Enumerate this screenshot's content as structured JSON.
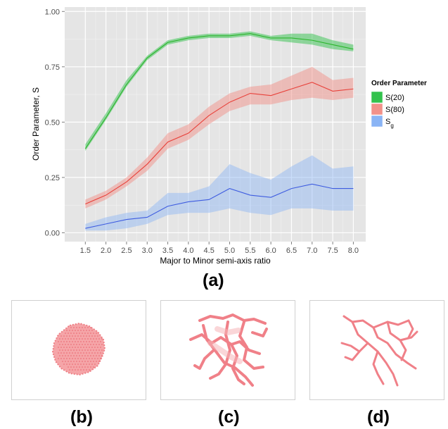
{
  "chart_data": {
    "type": "line",
    "xlabel": "Major to Minor semi-axis ratio",
    "ylabel": "Order Parameter, S",
    "x": [
      1.5,
      2.0,
      2.5,
      3.0,
      3.5,
      4.0,
      4.5,
      5.0,
      5.5,
      6.0,
      6.5,
      7.0,
      7.5,
      8.0
    ],
    "x_tick_labels": [
      "1.5",
      "2.0",
      "2.5",
      "3.0",
      "3.5",
      "4.0",
      "4.5",
      "5.0",
      "5.5",
      "6.0",
      "6.5",
      "7.0",
      "7.5",
      "8.0"
    ],
    "y_ticks": [
      0,
      0.25,
      0.5,
      0.75,
      1.0
    ],
    "y_tick_labels": [
      "0.00",
      "0.25",
      "0.50",
      "0.75",
      "1.00"
    ],
    "xlim": [
      1.0,
      8.3
    ],
    "ylim": [
      -0.04,
      1.02
    ],
    "grid": true,
    "legend": {
      "title": "Order Parameter",
      "placement": "right"
    },
    "series": [
      {
        "name": "S(20)",
        "line_color": "#2bb52b",
        "fill_color": "#33c24d",
        "values": [
          0.38,
          0.52,
          0.67,
          0.79,
          0.86,
          0.88,
          0.89,
          0.89,
          0.9,
          0.88,
          0.88,
          0.87,
          0.85,
          0.83
        ],
        "lower": [
          0.37,
          0.51,
          0.66,
          0.78,
          0.85,
          0.87,
          0.88,
          0.88,
          0.89,
          0.87,
          0.86,
          0.85,
          0.83,
          0.82
        ],
        "upper": [
          0.4,
          0.54,
          0.69,
          0.8,
          0.87,
          0.89,
          0.9,
          0.9,
          0.91,
          0.89,
          0.9,
          0.9,
          0.87,
          0.85
        ]
      },
      {
        "name": "S(80)",
        "line_color": "#e8413a",
        "fill_color": "#f2918a",
        "values": [
          0.13,
          0.17,
          0.23,
          0.31,
          0.41,
          0.45,
          0.53,
          0.59,
          0.63,
          0.62,
          0.65,
          0.68,
          0.64,
          0.65
        ],
        "lower": [
          0.11,
          0.15,
          0.21,
          0.28,
          0.38,
          0.42,
          0.49,
          0.55,
          0.58,
          0.58,
          0.6,
          0.61,
          0.6,
          0.61
        ],
        "upper": [
          0.15,
          0.19,
          0.25,
          0.34,
          0.45,
          0.49,
          0.57,
          0.63,
          0.66,
          0.67,
          0.71,
          0.75,
          0.69,
          0.7
        ]
      },
      {
        "name": "S",
        "name_subscript": "g",
        "line_color": "#3e5ce0",
        "fill_color": "#8ab4f5",
        "values": [
          0.02,
          0.04,
          0.06,
          0.07,
          0.12,
          0.14,
          0.15,
          0.2,
          0.17,
          0.16,
          0.2,
          0.22,
          0.2,
          0.2
        ],
        "lower": [
          0.01,
          0.01,
          0.02,
          0.04,
          0.08,
          0.09,
          0.09,
          0.11,
          0.09,
          0.08,
          0.11,
          0.11,
          0.1,
          0.1
        ],
        "upper": [
          0.04,
          0.07,
          0.09,
          0.1,
          0.18,
          0.18,
          0.21,
          0.31,
          0.27,
          0.24,
          0.3,
          0.35,
          0.29,
          0.3
        ]
      }
    ]
  },
  "figure_labels": {
    "a": "(a)",
    "b": "(b)",
    "c": "(c)",
    "d": "(d)"
  }
}
